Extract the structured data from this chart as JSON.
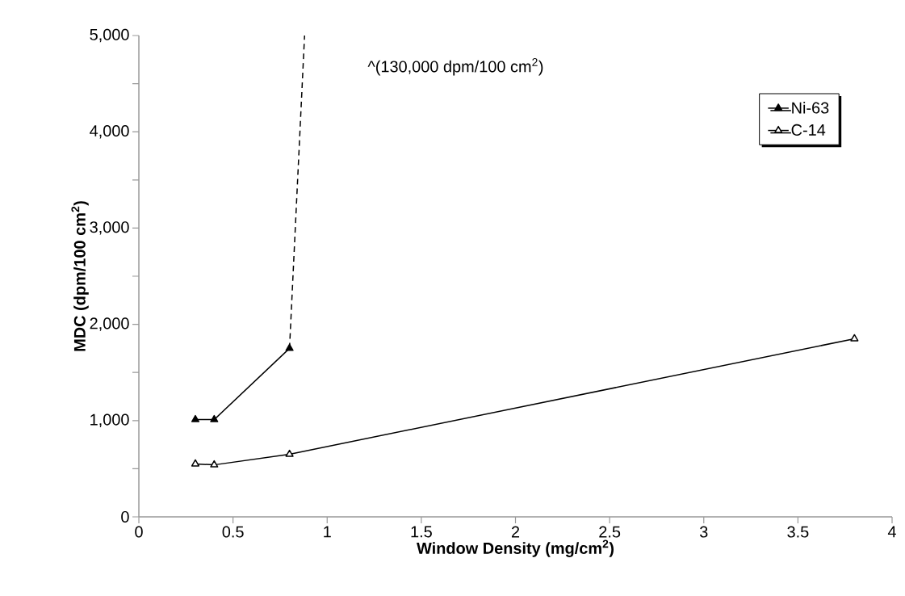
{
  "chart_data": {
    "type": "line",
    "xlabel": "Window Density (mg/cm$^{2}$)",
    "ylabel": "MDC (dpm/100 cm$^{2}$)",
    "series": [
      {
        "name": "Ni-63",
        "color": "#000000",
        "x": [
          0.3,
          0.4,
          0.8
        ],
        "values": [
          1010,
          1010,
          1750
        ],
        "marker": "triangle"
      },
      {
        "name": "C-14",
        "color": "#000000",
        "x": [
          0.3,
          0.4,
          0.8,
          3.8
        ],
        "values": [
          550,
          540,
          650,
          1850
        ],
        "marker": "triangle"
      },
      {
        "color": "#000000",
        "x": [
          0.8,
          0.88
        ],
        "values": [
          1750,
          5000
        ],
        "marker": "none",
        "line_style": "dashed"
      }
    ],
    "annotations": [
      "^(130,000 dpm/100 cm$^{2}$)"
    ],
    "xlim": [
      0,
      4
    ],
    "ylim": [
      0,
      5000
    ],
    "xticks": [
      0,
      0.5,
      1,
      1.5,
      2,
      2.5,
      3,
      3.5,
      4
    ],
    "yticks": [
      0,
      {
        "value": 500,
        "label": null
      },
      {
        "value": 1000,
        "label": "1,000"
      },
      {
        "value": 1500,
        "label": null
      },
      {
        "value": 2000,
        "label": "2,000"
      },
      {
        "value": 2500,
        "label": null
      },
      {
        "value": 3000,
        "label": "3,000"
      },
      {
        "value": 3500,
        "label": null
      },
      {
        "value": 4000,
        "label": "4,000"
      },
      {
        "value": 4500,
        "label": null
      },
      {
        "value": 5000,
        "label": "5,000"
      }
    ],
    "grid": false,
    "legend": "top right"
  }
}
